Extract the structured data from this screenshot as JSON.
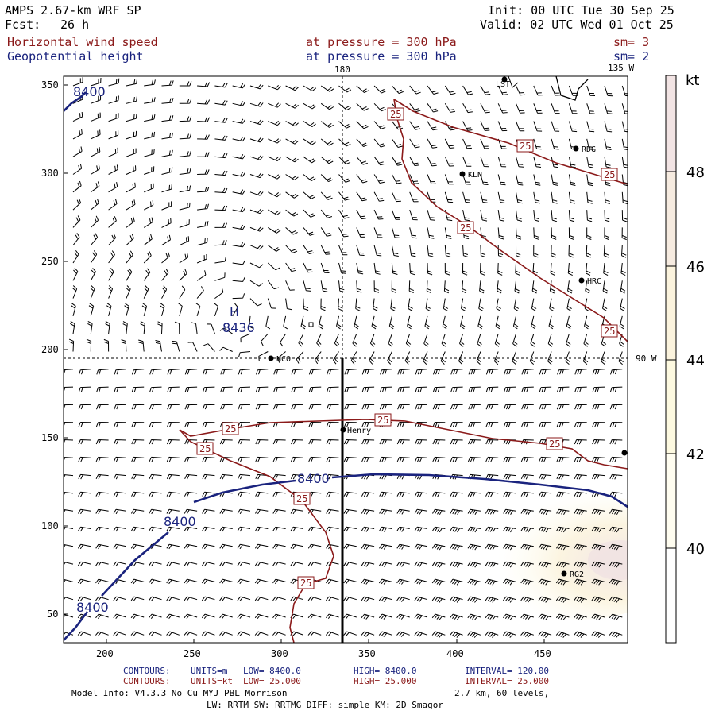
{
  "header": {
    "model": "AMPS 2.67-km WRF SP",
    "forecast_label": "Fcst:",
    "forecast_value": "26 h",
    "init": "Init: 00 UTC Tue 30 Sep 25",
    "valid": "Valid: 02 UTC Wed 01 Oct 25",
    "field1": "Horizontal wind speed",
    "field1_level": "at pressure =  300 hPa",
    "field1_sm": "sm= 3",
    "field2": "Geopotential height",
    "field2_level": "at pressure =  300 hPa",
    "field2_sm": "sm= 2"
  },
  "map": {
    "lon_top_180": "180",
    "lon_top_135w": "135 W",
    "lon_right_90w": "90 W",
    "x_ticks": [
      "200",
      "250",
      "300",
      "350",
      "400",
      "450"
    ],
    "y_ticks": [
      "350",
      "300",
      "250",
      "200",
      "150",
      "100",
      "50"
    ],
    "high_label": "H",
    "high_value": "8436",
    "height_contour_labels": [
      "8400",
      "8400",
      "8400",
      "8400"
    ],
    "speed_contour_label": "25",
    "stations": [
      "LST",
      "RDG",
      "KLN",
      "HRC",
      "NCO",
      "Henry",
      "RG2"
    ]
  },
  "colorbar": {
    "unit": "kt",
    "ticks": [
      "48",
      "46",
      "44",
      "42",
      "40"
    ],
    "colors": [
      "#f2e4e4",
      "#f6ebe0",
      "#fbf3dd",
      "#fdf9e0",
      "#fffdf0"
    ]
  },
  "footer": {
    "contours_label": "CONTOURS:",
    "c1_units": "UNITS=m",
    "c1_low": "LOW=  8400.0",
    "c1_high": "HIGH=  8400.0",
    "c1_interval": "INTERVAL=   120.00",
    "c2_units": "UNITS=kt",
    "c2_low": "LOW=  25.000",
    "c2_high": "HIGH=  25.000",
    "c2_interval": "INTERVAL=   25.000",
    "model_info": "Model Info: V4.3.3    No Cu   MYJ PBL  Morrison",
    "grid_info": "2.7 km,  60 levels,",
    "physics": "LW: RRTM SW: RRTMG   DIFF: simple KM: 2D Smagor"
  },
  "colors": {
    "height_contour": "#1a237e",
    "speed_contour": "#8b1a1a",
    "text_red": "#8b1a1a",
    "text_blue": "#1a237e"
  }
}
